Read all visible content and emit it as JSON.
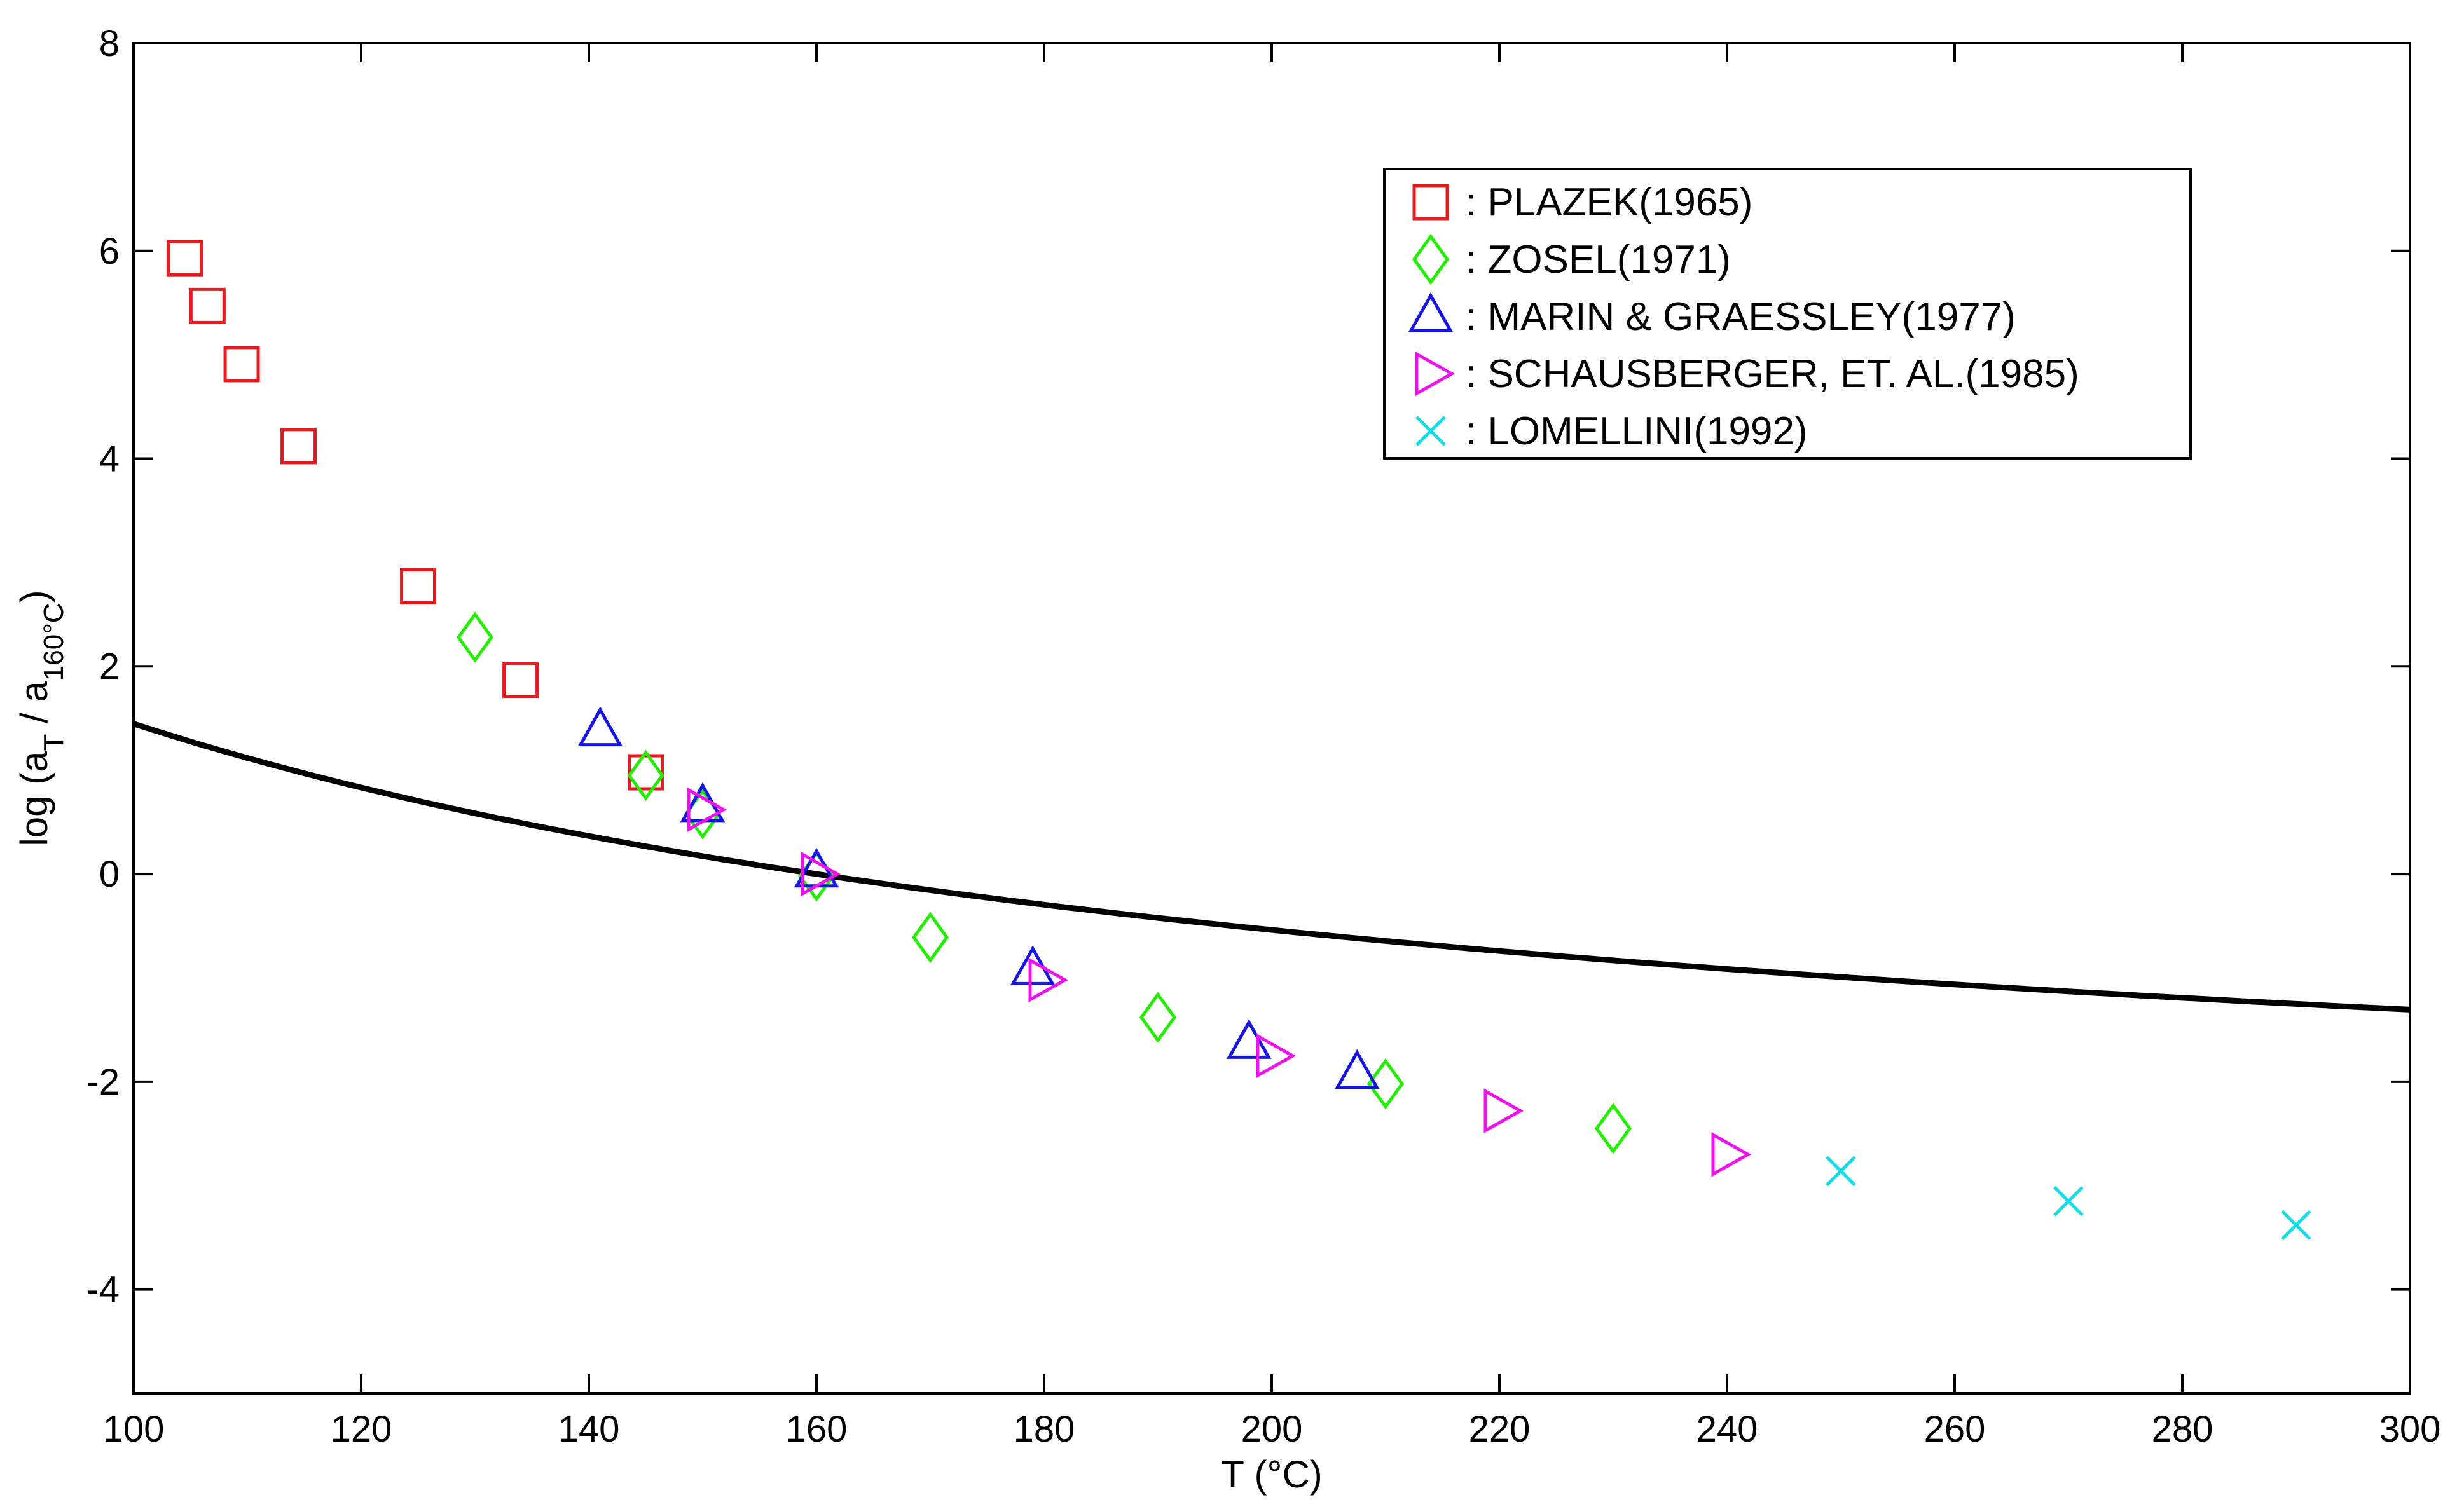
{
  "chart_data": {
    "type": "scatter",
    "title": "",
    "xlabel": "T (°C)",
    "ylabel": {
      "prefix": "log (a",
      "sub1": "T",
      "mid": " / a",
      "sub2": "160°C",
      "suffix": ")"
    },
    "xlim": [
      100,
      300
    ],
    "ylim": [
      -5,
      8
    ],
    "xticks": [
      100,
      120,
      140,
      160,
      180,
      200,
      220,
      240,
      260,
      280,
      300
    ],
    "yticks": [
      -4,
      -2,
      0,
      2,
      4,
      6,
      8
    ],
    "xtick_labels": [
      "100",
      "120",
      "140",
      "160",
      "180",
      "200",
      "220",
      "240",
      "260",
      "280",
      "300"
    ],
    "ytick_labels": [
      "-4",
      "-2",
      "0",
      "2",
      "4",
      "6",
      "8"
    ],
    "grid": false,
    "legend_position": "top-right",
    "fit_curve": {
      "model": "WLF",
      "c1": 3.04,
      "c2": 186.0,
      "t_ref": 160,
      "x_range": [
        100,
        300
      ],
      "color": "#000000"
    },
    "series": [
      {
        "name": "PLAZEK(1965)",
        "marker": "square",
        "color": "#e8191c",
        "points": [
          [
            104.5,
            5.93
          ],
          [
            106.5,
            5.47
          ],
          [
            109.5,
            4.91
          ],
          [
            114.5,
            4.12
          ],
          [
            125,
            2.77
          ],
          [
            134,
            1.87
          ],
          [
            145,
            0.98
          ]
        ]
      },
      {
        "name": "ZOSEL(1971)",
        "marker": "diamond",
        "color": "#22ee00",
        "points": [
          [
            130,
            2.28
          ],
          [
            145,
            0.95
          ],
          [
            150,
            0.58
          ],
          [
            160,
            -0.02
          ],
          [
            170,
            -0.61
          ],
          [
            190,
            -1.38
          ],
          [
            210,
            -2.02
          ],
          [
            230,
            -2.45
          ]
        ]
      },
      {
        "name": "MARIN & GRAESSLEY(1977)",
        "marker": "triangle-up",
        "color": "#1414e6",
        "points": [
          [
            141,
            1.38
          ],
          [
            150,
            0.65
          ],
          [
            160,
            0.02
          ],
          [
            179,
            -0.92
          ],
          [
            198,
            -1.63
          ],
          [
            207.5,
            -1.92
          ]
        ]
      },
      {
        "name": "SCHAUSBERGER, ET. AL.(1985)",
        "marker": "triangle-right",
        "color": "#ee11ee",
        "points": [
          [
            150,
            0.62
          ],
          [
            160,
            0.0
          ],
          [
            180,
            -1.02
          ],
          [
            200,
            -1.75
          ],
          [
            220,
            -2.28
          ],
          [
            240,
            -2.7
          ]
        ]
      },
      {
        "name": "LOMELLINI(1992)",
        "marker": "x",
        "color": "#11dde6",
        "points": [
          [
            250,
            -2.86
          ],
          [
            270,
            -3.15
          ],
          [
            290,
            -3.38
          ]
        ]
      }
    ]
  }
}
